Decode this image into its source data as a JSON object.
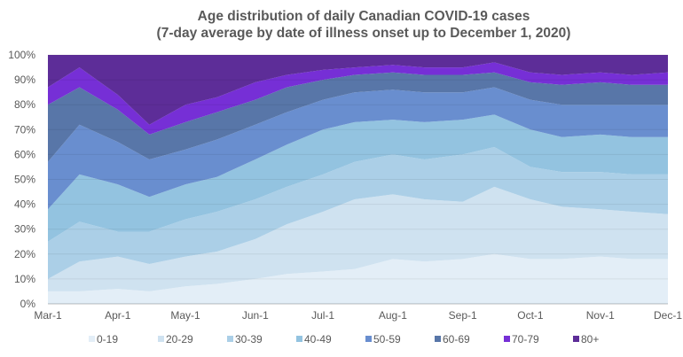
{
  "chart_data": {
    "type": "area",
    "stacked": true,
    "title": "Age distribution of daily Canadian COVID-19 cases",
    "subtitle": "(7-day average by date of illness onset up to December 1, 2020)",
    "xlabel": "",
    "ylabel": "",
    "ylim": [
      0,
      100
    ],
    "y_ticks": [
      "0%",
      "10%",
      "20%",
      "30%",
      "40%",
      "50%",
      "60%",
      "70%",
      "80%",
      "90%",
      "100%"
    ],
    "x_ticks": [
      {
        "date": "2020-03-01",
        "label": "Mar-1"
      },
      {
        "date": "2020-04-01",
        "label": "Apr-1"
      },
      {
        "date": "2020-05-01",
        "label": "May-1"
      },
      {
        "date": "2020-06-01",
        "label": "Jun-1"
      },
      {
        "date": "2020-07-01",
        "label": "Jul-1"
      },
      {
        "date": "2020-08-01",
        "label": "Aug-1"
      },
      {
        "date": "2020-09-01",
        "label": "Sep-1"
      },
      {
        "date": "2020-10-01",
        "label": "Oct-1"
      },
      {
        "date": "2020-11-01",
        "label": "Nov-1"
      },
      {
        "date": "2020-12-01",
        "label": "Dec-1"
      }
    ],
    "grid": true,
    "legend_position": "bottom",
    "x": [
      "2020-03-01",
      "2020-03-15",
      "2020-04-01",
      "2020-04-15",
      "2020-05-01",
      "2020-05-15",
      "2020-06-01",
      "2020-06-15",
      "2020-07-01",
      "2020-07-15",
      "2020-08-01",
      "2020-08-15",
      "2020-09-01",
      "2020-09-15",
      "2020-10-01",
      "2020-10-15",
      "2020-11-01",
      "2020-11-15",
      "2020-12-01"
    ],
    "series": [
      {
        "name": "0-19",
        "color": "#e3eef7",
        "values": [
          5,
          5,
          6,
          5,
          7,
          8,
          10,
          12,
          13,
          14,
          18,
          17,
          18,
          20,
          18,
          18,
          19,
          18,
          18
        ]
      },
      {
        "name": "20-29",
        "color": "#cfe2f0",
        "values": [
          5,
          12,
          13,
          11,
          12,
          13,
          16,
          20,
          24,
          28,
          26,
          25,
          23,
          27,
          24,
          21,
          19,
          19,
          18
        ]
      },
      {
        "name": "30-39",
        "color": "#abcfe7",
        "values": [
          15,
          16,
          10,
          13,
          15,
          16,
          16,
          15,
          15,
          15,
          16,
          16,
          19,
          16,
          13,
          14,
          15,
          15,
          16
        ]
      },
      {
        "name": "40-49",
        "color": "#93c3e0",
        "values": [
          13,
          19,
          19,
          14,
          14,
          14,
          16,
          17,
          18,
          16,
          14,
          15,
          14,
          13,
          15,
          14,
          15,
          15,
          15
        ]
      },
      {
        "name": "50-59",
        "color": "#698ecf",
        "values": [
          19,
          20,
          17,
          15,
          14,
          15,
          14,
          13,
          12,
          12,
          12,
          12,
          11,
          11,
          12,
          13,
          12,
          13,
          13
        ]
      },
      {
        "name": "60-69",
        "color": "#5876a8",
        "values": [
          23,
          15,
          13,
          10,
          11,
          11,
          10,
          10,
          8,
          7,
          7,
          7,
          7,
          6,
          7,
          8,
          9,
          8,
          8
        ]
      },
      {
        "name": "70-79",
        "color": "#762fd6",
        "values": [
          7,
          8,
          6,
          4,
          7,
          6,
          7,
          5,
          4,
          3,
          3,
          3,
          3,
          4,
          4,
          4,
          4,
          4,
          5
        ]
      },
      {
        "name": "80+",
        "color": "#5d2d98",
        "values": [
          13,
          5,
          16,
          28,
          20,
          17,
          11,
          8,
          6,
          5,
          4,
          5,
          5,
          3,
          7,
          8,
          7,
          8,
          7
        ]
      }
    ]
  }
}
